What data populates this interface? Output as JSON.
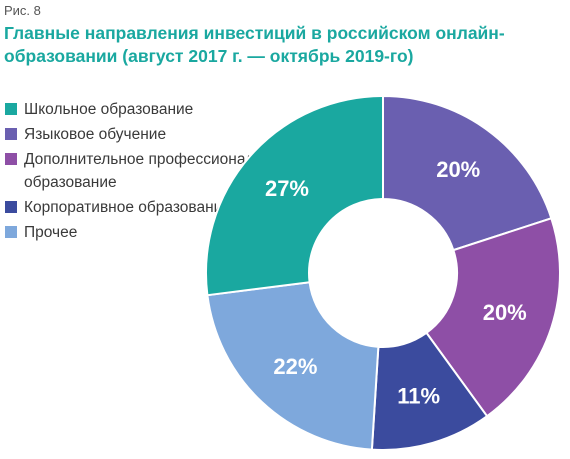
{
  "figure_label": "Рис. 8",
  "chart_data": {
    "type": "pie",
    "title": "Главные направления инвестиций в российском онлайн-образовании (август 2017 г. — октябрь 2019-го)",
    "legend_position": "top-left",
    "slices": [
      {
        "name": "Языковое обучение",
        "value": 20,
        "label": "20%",
        "color": "#6a5fb0"
      },
      {
        "name": "Дополнительное профессиональное образование",
        "value": 20,
        "label": "20%",
        "color": "#8e4fa6"
      },
      {
        "name": "Корпоративное образование",
        "value": 11,
        "label": "11%",
        "color": "#3b4b9e"
      },
      {
        "name": "Прочее",
        "value": 22,
        "label": "22%",
        "color": "#7ea8dc"
      },
      {
        "name": "Школьное образование",
        "value": 27,
        "label": "27%",
        "color": "#1aa8a0"
      }
    ]
  },
  "legend": [
    {
      "label": "Школьное образование",
      "color": "#1aa8a0"
    },
    {
      "label": "Языковое обучение",
      "color": "#6a5fb0"
    },
    {
      "label": "Дополнительное профессиональное образование",
      "color": "#8e4fa6"
    },
    {
      "label": "Корпоративное образование",
      "color": "#3b4b9e"
    },
    {
      "label": "Прочее",
      "color": "#7ea8dc"
    }
  ]
}
